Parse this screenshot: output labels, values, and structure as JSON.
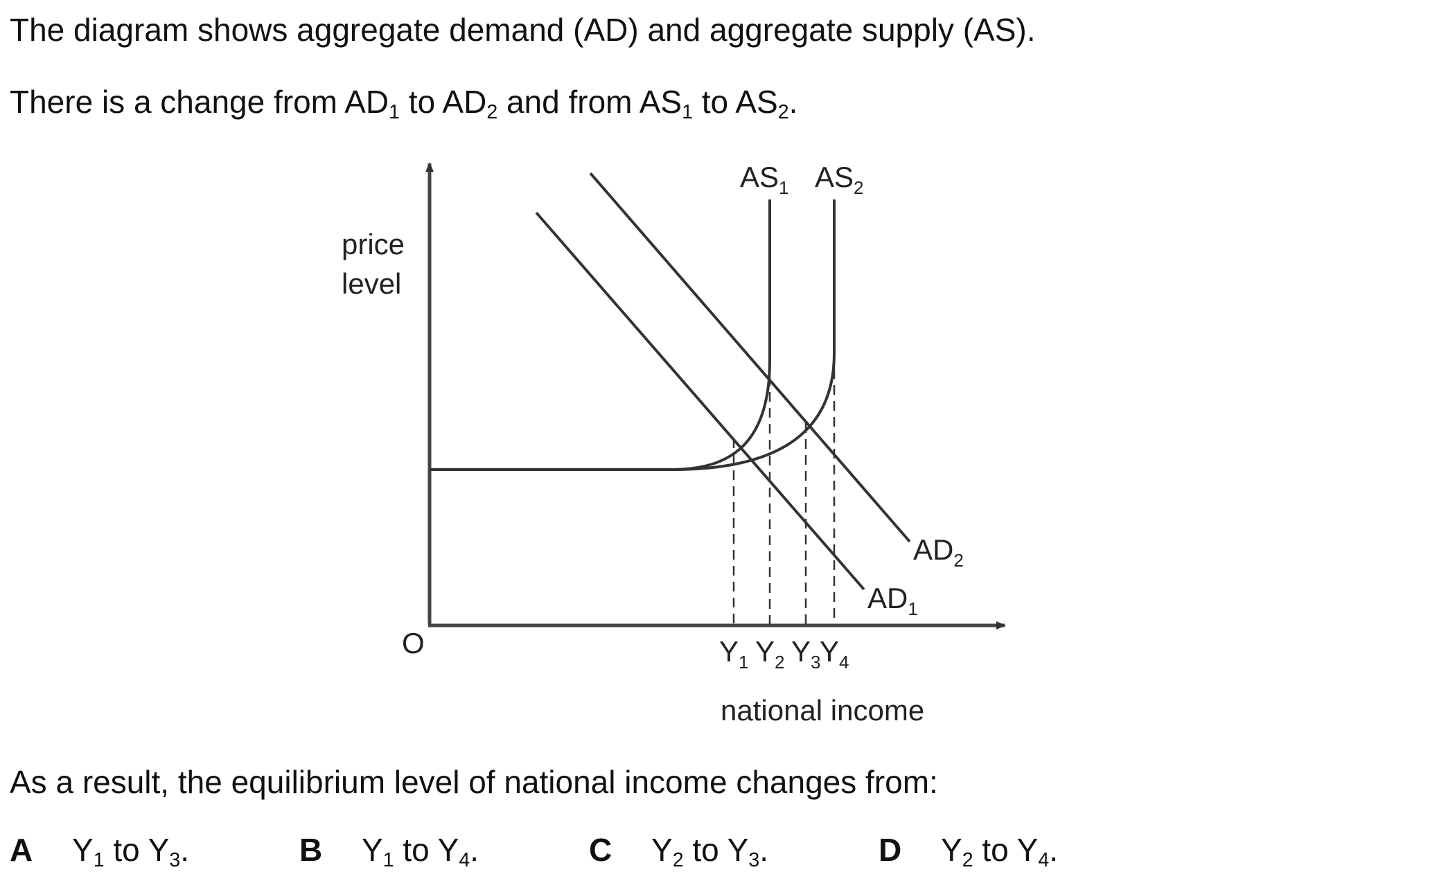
{
  "question": {
    "intro": "The diagram shows aggregate demand (AD) and aggregate supply (AS).",
    "change": {
      "t1": "There is a change from AD",
      "s1": "1",
      "t2": " to AD",
      "s2": "2",
      "t3": " and from AS",
      "s3": "1",
      "t4": " to AS",
      "s4": "2",
      "t5": "."
    },
    "prompt": "As a result, the equilibrium level of national income changes from:"
  },
  "diagram": {
    "y_axis_label": [
      "price",
      "level"
    ],
    "x_axis_label": "national income",
    "origin_label": "O",
    "curves": [
      {
        "id": "as1",
        "label": "AS",
        "sub": "1"
      },
      {
        "id": "as2",
        "label": "AS",
        "sub": "2"
      },
      {
        "id": "ad1",
        "label": "AD",
        "sub": "1"
      },
      {
        "id": "ad2",
        "label": "AD",
        "sub": "2"
      }
    ],
    "income_marks": [
      {
        "label": "Y",
        "sub": "1"
      },
      {
        "label": "Y",
        "sub": "2"
      },
      {
        "label": "Y",
        "sub": "3"
      },
      {
        "label": "Y",
        "sub": "4"
      }
    ]
  },
  "options": [
    {
      "letter": "A",
      "from": "Y",
      "from_sub": "1",
      "word": " to ",
      "to": "Y",
      "to_sub": "3",
      "end": "."
    },
    {
      "letter": "B",
      "from": "Y",
      "from_sub": "1",
      "word": " to ",
      "to": "Y",
      "to_sub": "4",
      "end": "."
    },
    {
      "letter": "C",
      "from": "Y",
      "from_sub": "2",
      "word": " to ",
      "to": "Y",
      "to_sub": "3",
      "end": "."
    },
    {
      "letter": "D",
      "from": "Y",
      "from_sub": "2",
      "word": " to ",
      "to": "Y",
      "to_sub": "4",
      "end": "."
    }
  ]
}
